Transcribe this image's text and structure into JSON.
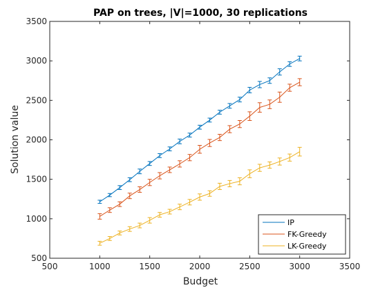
{
  "chart_data": {
    "type": "line",
    "title": "PAP on trees, |V|=1000, 30 replications",
    "xlabel": "Budget",
    "ylabel": "Solution value",
    "xlim": [
      500,
      3500
    ],
    "ylim": [
      500,
      3500
    ],
    "xticks": [
      500,
      1000,
      1500,
      2000,
      2500,
      3000,
      3500
    ],
    "yticks": [
      500,
      1000,
      1500,
      2000,
      2500,
      3000,
      3500
    ],
    "grid": false,
    "legend_position": "bottom-right",
    "x": [
      1000,
      1100,
      1200,
      1300,
      1400,
      1500,
      1600,
      1700,
      1800,
      1900,
      2000,
      2100,
      2200,
      2300,
      2400,
      2500,
      2600,
      2700,
      2800,
      2900,
      3000
    ],
    "series": [
      {
        "name": "IP",
        "color": "#0072BD",
        "values": [
          1215,
          1300,
          1395,
          1495,
          1600,
          1700,
          1800,
          1885,
          1980,
          2060,
          2160,
          2250,
          2350,
          2430,
          2510,
          2630,
          2700,
          2750,
          2860,
          2960,
          3030
        ],
        "errors": [
          20,
          20,
          25,
          25,
          30,
          25,
          25,
          25,
          30,
          25,
          25,
          25,
          25,
          30,
          30,
          35,
          40,
          35,
          40,
          30,
          30
        ]
      },
      {
        "name": "FK-Greedy",
        "color": "#D95319",
        "values": [
          1030,
          1110,
          1185,
          1290,
          1370,
          1460,
          1545,
          1620,
          1695,
          1775,
          1880,
          1960,
          2030,
          2135,
          2200,
          2300,
          2410,
          2450,
          2540,
          2660,
          2730
        ],
        "errors": [
          35,
          30,
          30,
          35,
          35,
          40,
          40,
          35,
          40,
          40,
          50,
          45,
          40,
          45,
          45,
          55,
          60,
          55,
          65,
          45,
          45
        ]
      },
      {
        "name": "LK-Greedy",
        "color": "#EDB120",
        "values": [
          690,
          750,
          820,
          870,
          915,
          980,
          1050,
          1090,
          1150,
          1210,
          1275,
          1320,
          1410,
          1445,
          1475,
          1570,
          1645,
          1680,
          1725,
          1775,
          1850
        ],
        "errors": [
          25,
          25,
          25,
          30,
          30,
          35,
          30,
          30,
          35,
          35,
          40,
          35,
          40,
          40,
          45,
          50,
          45,
          40,
          45,
          45,
          55
        ]
      }
    ]
  }
}
